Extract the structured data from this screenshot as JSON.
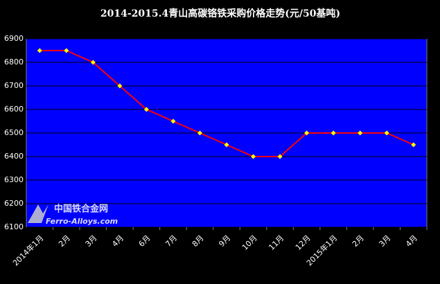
{
  "chart_data": {
    "type": "line",
    "title": "2014-2015.4青山高碳铬铁采购价格走势(元/50基吨)",
    "categories": [
      "2014年1月",
      "2月",
      "3月",
      "4月",
      "6月",
      "7月",
      "8月",
      "9月",
      "10月",
      "11月",
      "12月",
      "2015年1月",
      "2月",
      "3月",
      "4月"
    ],
    "values": [
      6850,
      6850,
      6800,
      6700,
      6600,
      6550,
      6500,
      6450,
      6400,
      6400,
      6500,
      6500,
      6500,
      6500,
      6450
    ],
    "color": "#ff0000",
    "marker_color": "#ffff00",
    "ylim": [
      6100,
      6900
    ],
    "yticks": [
      6100,
      6200,
      6300,
      6400,
      6500,
      6600,
      6700,
      6800,
      6900
    ],
    "grid": true,
    "watermark": {
      "name": "中国铁合金网",
      "url": "Ferro-Alloys.com"
    }
  }
}
